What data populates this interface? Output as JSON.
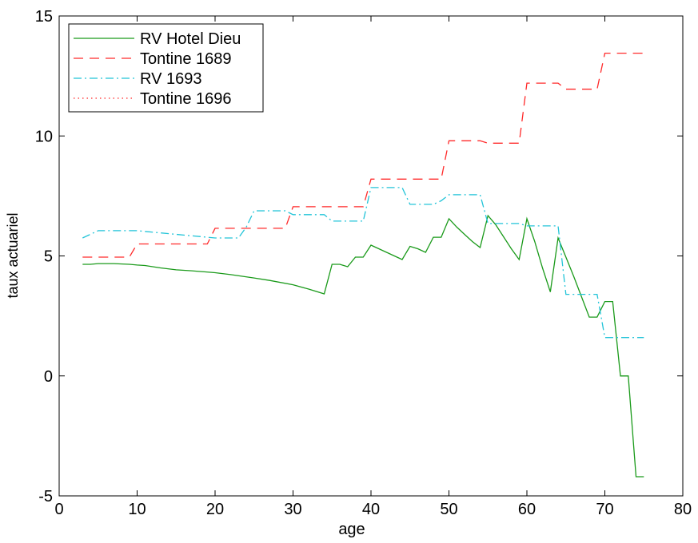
{
  "chart_data": {
    "type": "line",
    "title": "",
    "xlabel": "age",
    "ylabel": "taux actuariel",
    "xlim": [
      0,
      80
    ],
    "ylim": [
      -5,
      15
    ],
    "xticks": [
      0,
      10,
      20,
      30,
      40,
      50,
      60,
      70,
      80
    ],
    "yticks": [
      -5,
      0,
      5,
      10,
      15
    ],
    "grid": false,
    "legend_position": "top-left",
    "series": [
      {
        "name": "RV Hotel Dieu",
        "color": "#1a9a1a",
        "dash": "solid",
        "x": [
          3,
          4,
          5,
          7,
          9,
          10,
          11,
          13,
          15,
          17,
          20,
          22,
          25,
          27,
          30,
          32,
          34,
          35,
          36,
          37,
          38,
          39,
          40,
          42,
          44,
          45,
          46,
          47,
          48,
          49,
          50,
          51,
          52,
          53,
          54,
          55,
          56,
          57,
          58,
          59,
          60,
          61,
          62,
          63,
          64,
          65,
          66,
          67,
          68,
          69,
          70,
          71,
          72,
          73,
          74,
          75
        ],
        "y": [
          4.65,
          4.65,
          4.68,
          4.68,
          4.65,
          4.62,
          4.6,
          4.5,
          4.42,
          4.38,
          4.3,
          4.22,
          4.08,
          3.98,
          3.8,
          3.62,
          3.42,
          4.65,
          4.65,
          4.55,
          4.95,
          4.95,
          5.45,
          5.15,
          4.85,
          5.4,
          5.3,
          5.15,
          5.78,
          5.78,
          6.55,
          6.2,
          5.9,
          5.6,
          5.35,
          6.68,
          6.3,
          5.8,
          5.3,
          4.85,
          6.55,
          5.6,
          4.5,
          3.5,
          5.75,
          4.95,
          4.15,
          3.3,
          2.45,
          2.45,
          3.1,
          3.1,
          0.0,
          0.0,
          -4.2,
          -4.2
        ]
      },
      {
        "name": "Tontine 1689",
        "color": "#ff2a2a",
        "dash": "dashed",
        "x": [
          3,
          9,
          10,
          19,
          20,
          29,
          30,
          39,
          40,
          49,
          50,
          54,
          55,
          59,
          60,
          64,
          65,
          69,
          70,
          75
        ],
        "y": [
          4.95,
          4.95,
          5.5,
          5.5,
          6.15,
          6.15,
          7.05,
          7.05,
          8.2,
          8.2,
          9.8,
          9.8,
          9.7,
          9.7,
          12.2,
          12.2,
          11.95,
          11.95,
          13.45,
          13.45
        ]
      },
      {
        "name": "RV 1693",
        "color": "#22c4d8",
        "dash": "dash-dot",
        "x": [
          3,
          5,
          10,
          15,
          20,
          23,
          24,
          25,
          29,
          30,
          34,
          35,
          39,
          40,
          44,
          45,
          48,
          49,
          50,
          54,
          55,
          59,
          60,
          64,
          65,
          69,
          70,
          75
        ],
        "y": [
          5.75,
          6.05,
          6.05,
          5.9,
          5.75,
          5.75,
          6.2,
          6.88,
          6.88,
          6.72,
          6.72,
          6.45,
          6.45,
          7.85,
          7.85,
          7.15,
          7.15,
          7.3,
          7.55,
          7.55,
          6.35,
          6.35,
          6.25,
          6.25,
          3.4,
          3.4,
          1.6,
          1.6
        ]
      },
      {
        "name": "Tontine 1696",
        "color": "#ff2a2a",
        "dash": "dotted",
        "x": [],
        "y": []
      }
    ]
  }
}
